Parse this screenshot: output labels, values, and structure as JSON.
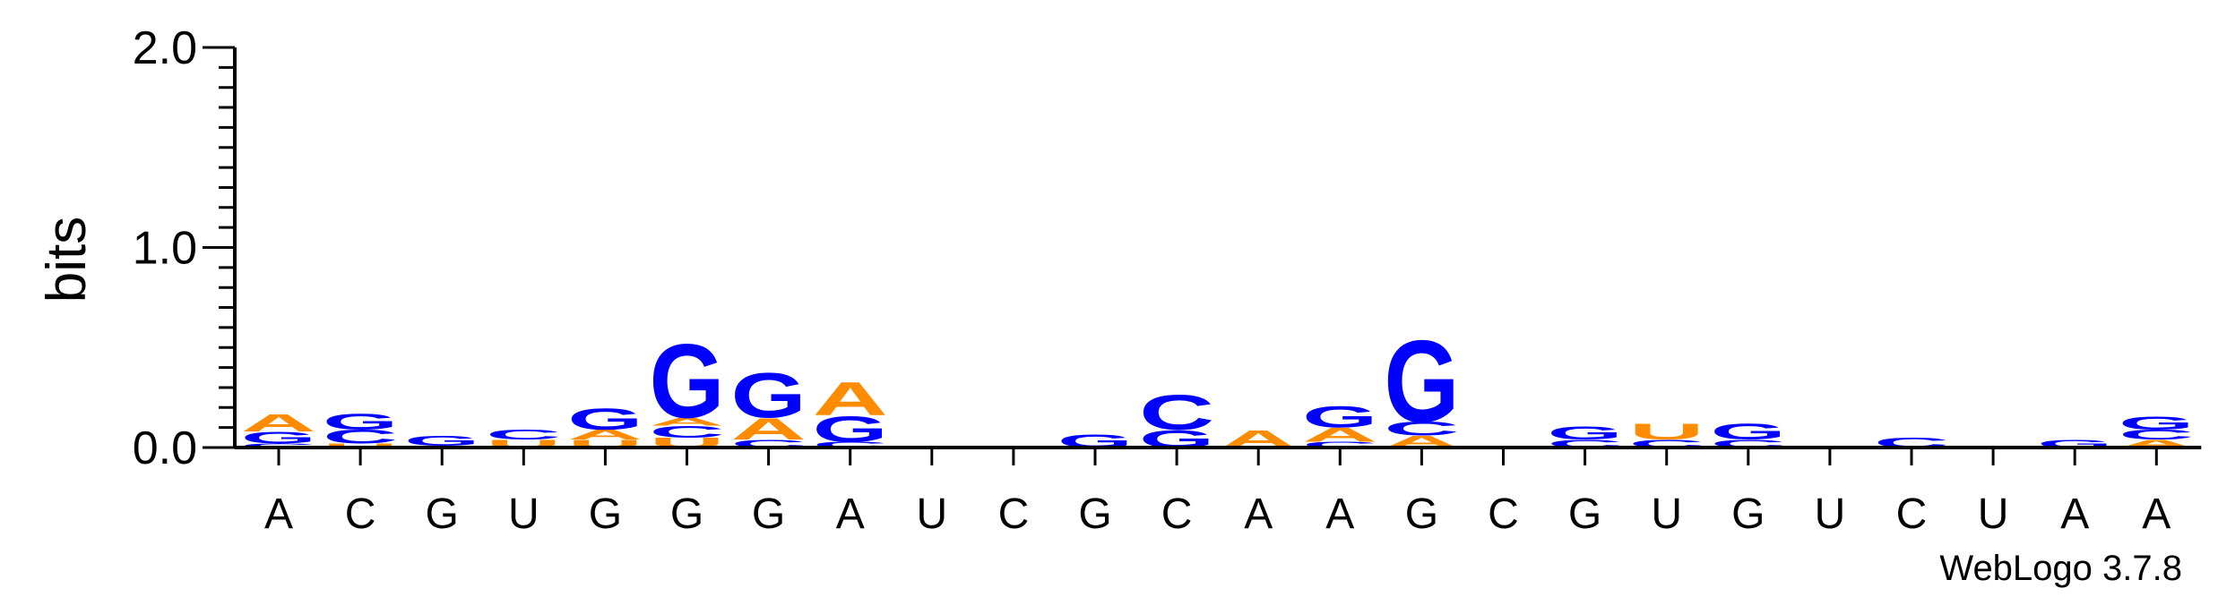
{
  "chart_data": {
    "type": "sequence-logo",
    "ylabel": "bits",
    "ylim": [
      0,
      2.0
    ],
    "yticks": [
      "0.0",
      "1.0",
      "2.0"
    ],
    "colors": {
      "A": "#ff8c00",
      "C": "#0000ff",
      "G": "#0000ff",
      "U": "#ff8c00"
    },
    "credit": "WebLogo 3.7.8",
    "positions": [
      {
        "label": "A",
        "stack": [
          {
            "l": "C",
            "h": 0.02
          },
          {
            "l": "G",
            "h": 0.06
          },
          {
            "l": "A",
            "h": 0.09
          }
        ]
      },
      {
        "label": "C",
        "stack": [
          {
            "l": "U",
            "h": 0.02
          },
          {
            "l": "C",
            "h": 0.07
          },
          {
            "l": "G",
            "h": 0.08
          }
        ]
      },
      {
        "label": "G",
        "stack": [
          {
            "l": "A",
            "h": 0.01
          },
          {
            "l": "G",
            "h": 0.05
          }
        ]
      },
      {
        "label": "U",
        "stack": [
          {
            "l": "U",
            "h": 0.04
          },
          {
            "l": "C",
            "h": 0.05
          }
        ]
      },
      {
        "label": "G",
        "stack": [
          {
            "l": "U",
            "h": 0.04
          },
          {
            "l": "A",
            "h": 0.05
          },
          {
            "l": "G",
            "h": 0.11
          }
        ]
      },
      {
        "label": "G",
        "stack": [
          {
            "l": "U",
            "h": 0.05
          },
          {
            "l": "C",
            "h": 0.06
          },
          {
            "l": "A",
            "h": 0.04
          },
          {
            "l": "G",
            "h": 0.38
          }
        ]
      },
      {
        "label": "G",
        "stack": [
          {
            "l": "C",
            "h": 0.04
          },
          {
            "l": "A",
            "h": 0.11
          },
          {
            "l": "G",
            "h": 0.23
          }
        ]
      },
      {
        "label": "A",
        "stack": [
          {
            "l": "C",
            "h": 0.03
          },
          {
            "l": "G",
            "h": 0.13
          },
          {
            "l": "A",
            "h": 0.17
          }
        ]
      },
      {
        "label": "U",
        "stack": []
      },
      {
        "label": "C",
        "stack": []
      },
      {
        "label": "G",
        "stack": [
          {
            "l": "G",
            "h": 0.07
          }
        ]
      },
      {
        "label": "C",
        "stack": [
          {
            "l": "G",
            "h": 0.09
          },
          {
            "l": "C",
            "h": 0.18
          }
        ]
      },
      {
        "label": "A",
        "stack": [
          {
            "l": "A",
            "h": 0.09
          }
        ]
      },
      {
        "label": "A",
        "stack": [
          {
            "l": "C",
            "h": 0.03
          },
          {
            "l": "A",
            "h": 0.07
          },
          {
            "l": "G",
            "h": 0.11
          }
        ]
      },
      {
        "label": "G",
        "stack": [
          {
            "l": "A",
            "h": 0.06
          },
          {
            "l": "C",
            "h": 0.07
          },
          {
            "l": "G",
            "h": 0.42
          }
        ]
      },
      {
        "label": "C",
        "stack": []
      },
      {
        "label": "G",
        "stack": [
          {
            "l": "C",
            "h": 0.04
          },
          {
            "l": "G",
            "h": 0.07
          }
        ]
      },
      {
        "label": "U",
        "stack": [
          {
            "l": "C",
            "h": 0.04
          },
          {
            "l": "U",
            "h": 0.08
          }
        ]
      },
      {
        "label": "G",
        "stack": [
          {
            "l": "C",
            "h": 0.04
          },
          {
            "l": "G",
            "h": 0.08
          }
        ]
      },
      {
        "label": "U",
        "stack": []
      },
      {
        "label": "C",
        "stack": [
          {
            "l": "C",
            "h": 0.05
          }
        ]
      },
      {
        "label": "U",
        "stack": []
      },
      {
        "label": "A",
        "stack": [
          {
            "l": "G",
            "h": 0.04
          }
        ]
      },
      {
        "label": "A",
        "stack": [
          {
            "l": "A",
            "h": 0.04
          },
          {
            "l": "C",
            "h": 0.05
          },
          {
            "l": "G",
            "h": 0.07
          }
        ]
      }
    ]
  }
}
